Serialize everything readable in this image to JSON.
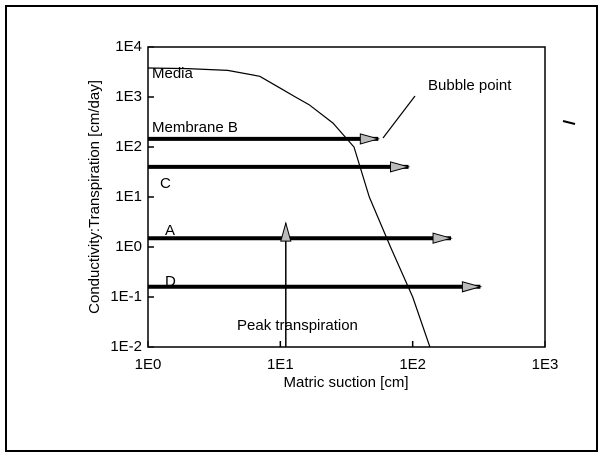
{
  "chart_data": {
    "type": "line",
    "xlabel": "Matric suction [cm]",
    "ylabel": "Conductivity:Transpiration [cm/day]",
    "log_x": true,
    "log_y": true,
    "grid": false,
    "xlim": [
      1,
      1000
    ],
    "ylim": [
      0.01,
      10000
    ],
    "xticks": [
      {
        "value": 1,
        "label": "1E0"
      },
      {
        "value": 10,
        "label": "1E1"
      },
      {
        "value": 100,
        "label": "1E2"
      },
      {
        "value": 1000,
        "label": "1E3"
      }
    ],
    "yticks": [
      {
        "value": 0.01,
        "label": "1E-2"
      },
      {
        "value": 0.1,
        "label": "1E-1"
      },
      {
        "value": 1,
        "label": "1E0"
      },
      {
        "value": 10,
        "label": "1E1"
      },
      {
        "value": 100,
        "label": "1E2"
      },
      {
        "value": 1000,
        "label": "1E3"
      },
      {
        "value": 10000,
        "label": "1E4"
      }
    ],
    "series": [
      {
        "name": "Media",
        "color": "#000000",
        "x": [
          1,
          2,
          4,
          7,
          10,
          13,
          16.5,
          25,
          36,
          47,
          68,
          100,
          135,
          160
        ],
        "values": [
          3800,
          3700,
          3400,
          2600,
          1500,
          1000,
          700,
          300,
          100,
          10,
          1,
          0.1,
          0.01,
          0.003
        ]
      },
      {
        "name": "Membrane B",
        "color": "#000000",
        "x": [
          1,
          55
        ],
        "values": [
          145,
          145
        ]
      },
      {
        "name": "C",
        "color": "#000000",
        "x": [
          1,
          93
        ],
        "values": [
          40,
          40
        ]
      },
      {
        "name": "A",
        "color": "#000000",
        "x": [
          1,
          195
        ],
        "values": [
          1.5,
          1.5
        ]
      },
      {
        "name": "D",
        "color": "#000000",
        "x": [
          1,
          325
        ],
        "values": [
          0.16,
          0.16
        ]
      },
      {
        "name": "Peak transpiration",
        "color": "#000000",
        "x": [
          11,
          11
        ],
        "values": [
          0.01,
          3
        ]
      }
    ],
    "annotations": [
      "Bubble point"
    ]
  }
}
